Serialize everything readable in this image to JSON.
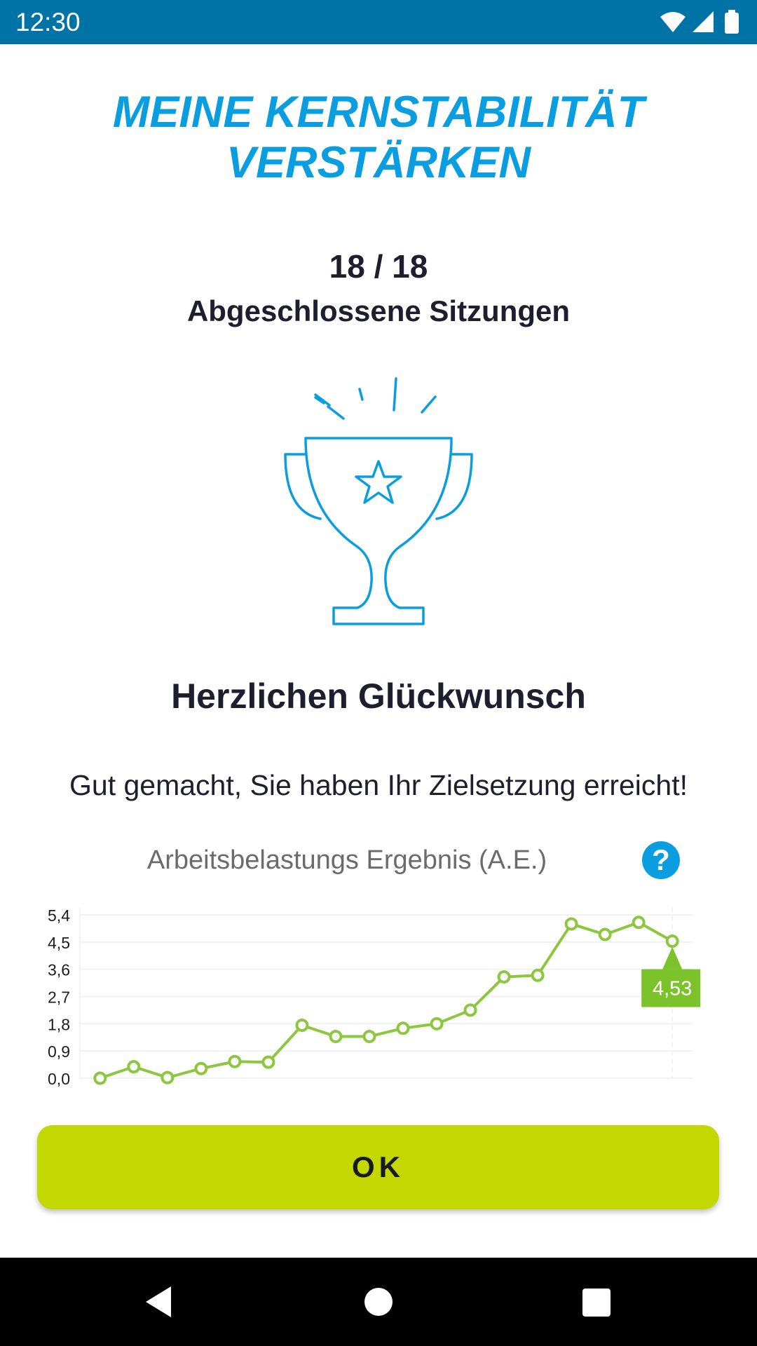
{
  "status_bar": {
    "time": "12:30",
    "icons": [
      "wifi-icon",
      "signal-icon",
      "battery-icon"
    ]
  },
  "title": {
    "line1": "MEINE KERNSTABILITÄT",
    "line2": "VERSTÄRKEN"
  },
  "sessions": {
    "count": "18 / 18",
    "label": "Abgeschlossene Sitzungen"
  },
  "trophy_icon": "trophy-icon",
  "congrats": "Herzlichen Glückwunsch",
  "message": "Gut gemacht, Sie haben Ihr Zielsetzung erreicht!",
  "chart_title": "Arbeitsbelastungs Ergebnis (A.E.)",
  "help_label": "?",
  "chart_data": {
    "type": "line",
    "title": "Arbeitsbelastungs Ergebnis (A.E.)",
    "xlabel": "",
    "ylabel": "",
    "ylim": [
      0,
      5.4
    ],
    "y_ticks": [
      "0,0",
      "0,9",
      "1,8",
      "2,7",
      "3,6",
      "4,5",
      "5,4"
    ],
    "x": [
      1,
      2,
      3,
      4,
      5,
      6,
      7,
      8,
      9,
      10,
      11,
      12,
      13,
      14,
      15,
      16,
      17,
      18
    ],
    "values": [
      0.0,
      0.38,
      0.02,
      0.32,
      0.55,
      0.53,
      1.75,
      1.38,
      1.38,
      1.65,
      1.8,
      2.25,
      3.35,
      3.4,
      5.1,
      4.75,
      5.15,
      4.53
    ],
    "highlight": {
      "index": 17,
      "label": "4,53"
    },
    "grid": true,
    "color": "#8dc63f",
    "label_color": "#7cc22b"
  },
  "ok_button": {
    "label": "OK"
  },
  "nav_bar": {
    "back": "back-icon",
    "home": "home-icon",
    "recents": "recents-icon"
  }
}
